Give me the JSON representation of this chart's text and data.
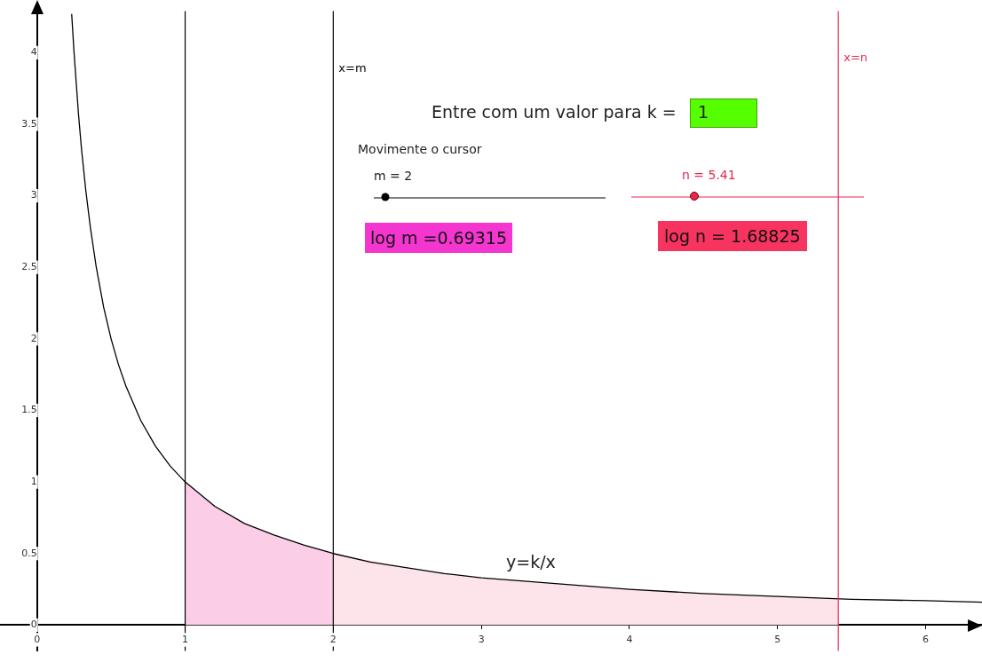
{
  "chart_data": {
    "type": "line",
    "legend": false,
    "marker": "none",
    "line_style": "solid",
    "xlim": [
      -0.25,
      6.38
    ],
    "ylim": [
      -0.18,
      4.29
    ],
    "xticks": [
      0,
      1,
      2,
      3,
      4,
      5,
      6
    ],
    "yticks": [
      0,
      0.5,
      1,
      1.5,
      2,
      2.5,
      3,
      3.5,
      4
    ],
    "series": [
      {
        "type": "area",
        "color": "#fbcde6",
        "x": [
          1,
          1.2,
          1.4,
          1.6,
          1.8,
          2
        ],
        "values": [
          1,
          0.83,
          0.71,
          0.63,
          0.56,
          0.5
        ]
      },
      {
        "type": "area",
        "color": "#fde3ea",
        "x": [
          2,
          2.5,
          3,
          3.5,
          4,
          4.5,
          5,
          5.41
        ],
        "values": [
          0.5,
          0.4,
          0.33,
          0.29,
          0.25,
          0.22,
          0.2,
          0.18
        ]
      },
      {
        "color": "#000000",
        "x": [
          0.234,
          0.25,
          0.28,
          0.3,
          0.33,
          0.36,
          0.4,
          0.45,
          0.5,
          0.55,
          0.6,
          0.7,
          0.8,
          0.9,
          1,
          1.2,
          1.4,
          1.6,
          1.8,
          2,
          2.25,
          2.5,
          2.75,
          3,
          3.5,
          4,
          4.5,
          5,
          5.5,
          6,
          6.38
        ],
        "values": [
          4.27,
          4,
          3.57,
          3.33,
          3.03,
          2.78,
          2.5,
          2.22,
          2,
          1.82,
          1.67,
          1.43,
          1.25,
          1.11,
          1,
          0.83,
          0.71,
          0.63,
          0.56,
          0.5,
          0.44,
          0.4,
          0.36,
          0.33,
          0.29,
          0.25,
          0.22,
          0.2,
          0.18,
          0.17,
          0.16
        ]
      }
    ],
    "ref_lines": [
      {
        "axis": "x",
        "value": 1,
        "color": "#000000"
      },
      {
        "axis": "x",
        "value": 2,
        "label": "x=m",
        "color": "#000000"
      },
      {
        "axis": "x",
        "value": 5.41,
        "label": "x=n",
        "color": "#e8264f"
      }
    ],
    "annotations": [
      "Entre com um valor para k =",
      "1",
      "Movimente o cursor",
      "m = 2",
      "n = 5.41",
      "log m =0.69315",
      "log n = 1.68825",
      "y=k/x"
    ]
  }
}
